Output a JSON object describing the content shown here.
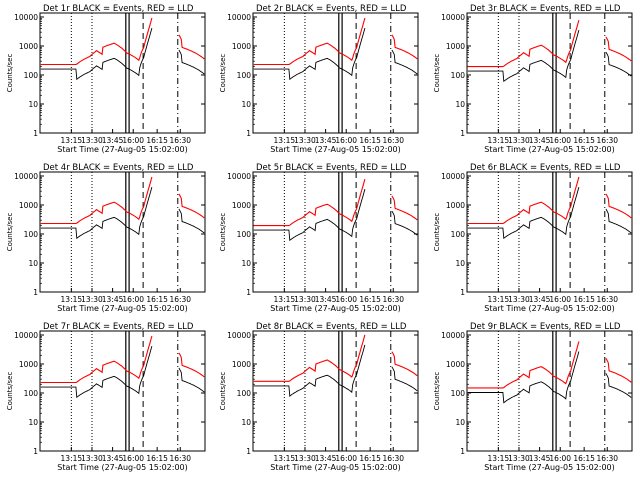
{
  "figure": {
    "yticks": [
      1,
      10,
      100,
      1000,
      10000
    ],
    "ytick_labels": [
      "1",
      "10",
      "100",
      "1000",
      "10000"
    ],
    "xticks": [
      "13:15",
      "13:30",
      "13:45",
      "16:00",
      "16:15",
      "16:30"
    ],
    "xlabel": "Start Time (27-Aug-05 15:02:00)",
    "ylabel": "Counts/sec",
    "colors": {
      "events": "#000000",
      "lld": "#ff0000"
    }
  },
  "chart_data": [
    {
      "type": "line",
      "title": "Det 1r BLACK = Events, RED = LLD",
      "scale": 1.0,
      "xlabel": "Start Time (27-Aug-05 15:02:00)",
      "ylabel": "Counts/sec",
      "yscale": "log",
      "ylim": [
        1,
        10000
      ]
    },
    {
      "type": "line",
      "title": "Det 2r BLACK = Events, RED = LLD",
      "scale": 1.0,
      "xlabel": "Start Time (27-Aug-05 15:02:00)",
      "ylabel": "Counts/sec",
      "yscale": "log",
      "ylim": [
        1,
        10000
      ]
    },
    {
      "type": "line",
      "title": "Det 3r BLACK = Events, RED = LLD",
      "scale": 0.85,
      "xlabel": "Start Time (27-Aug-05 15:02:00)",
      "ylabel": "Counts/sec",
      "yscale": "log",
      "ylim": [
        1,
        10000
      ]
    },
    {
      "type": "line",
      "title": "Det 4r BLACK = Events, RED = LLD",
      "scale": 1.0,
      "xlabel": "Start Time (27-Aug-05 15:02:00)",
      "ylabel": "Counts/sec",
      "yscale": "log",
      "ylim": [
        1,
        10000
      ]
    },
    {
      "type": "line",
      "title": "Det 5r BLACK = Events, RED = LLD",
      "scale": 0.85,
      "xlabel": "Start Time (27-Aug-05 15:02:00)",
      "ylabel": "Counts/sec",
      "yscale": "log",
      "ylim": [
        1,
        10000
      ]
    },
    {
      "type": "line",
      "title": "Det 6r BLACK = Events, RED = LLD",
      "scale": 1.0,
      "xlabel": "Start Time (27-Aug-05 15:02:00)",
      "ylabel": "Counts/sec",
      "yscale": "log",
      "ylim": [
        1,
        10000
      ]
    },
    {
      "type": "line",
      "title": "Det 7r BLACK = Events, RED = LLD",
      "scale": 1.0,
      "xlabel": "Start Time (27-Aug-05 15:02:00)",
      "ylabel": "Counts/sec",
      "yscale": "log",
      "ylim": [
        1,
        10000
      ]
    },
    {
      "type": "line",
      "title": "Det 8r BLACK = Events, RED = LLD",
      "scale": 1.1,
      "xlabel": "Start Time (27-Aug-05 15:02:00)",
      "ylabel": "Counts/sec",
      "yscale": "log",
      "ylim": [
        1,
        10000
      ]
    },
    {
      "type": "line",
      "title": "Det 9r BLACK = Events, RED = LLD",
      "scale": 0.65,
      "xlabel": "Start Time (27-Aug-05 15:02:00)",
      "ylabel": "Counts/sec",
      "yscale": "log",
      "ylim": [
        1,
        10000
      ]
    }
  ]
}
